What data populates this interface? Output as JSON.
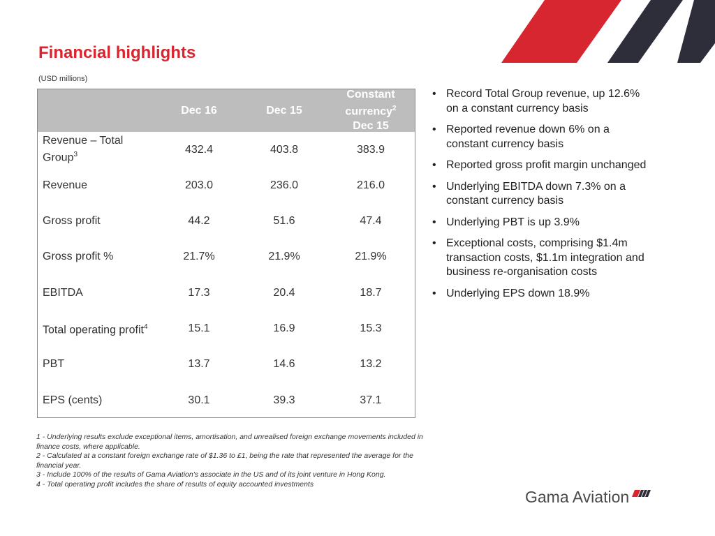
{
  "slide": {
    "title": "Financial highlights",
    "subtitle": "(USD millions)"
  },
  "table": {
    "headers": {
      "col1": "Dec 16",
      "col2": "Dec 15",
      "col3_line1": "Constant",
      "col3_line2": "currency",
      "col3_sup": "2",
      "col3_line3": "Dec 15"
    },
    "rows": [
      {
        "label": "Revenue – Total Group",
        "sup": "3",
        "v1": "432.4",
        "v2": "403.8",
        "v3": "383.9"
      },
      {
        "label": "Revenue",
        "sup": "",
        "v1": "203.0",
        "v2": "236.0",
        "v3": "216.0"
      },
      {
        "label": "Gross profit",
        "sup": "",
        "v1": "44.2",
        "v2": "51.6",
        "v3": "47.4"
      },
      {
        "label": "Gross profit %",
        "sup": "",
        "v1": "21.7%",
        "v2": "21.9%",
        "v3": "21.9%"
      },
      {
        "label": "EBITDA",
        "sup": "",
        "v1": "17.3",
        "v2": "20.4",
        "v3": "18.7"
      },
      {
        "label": "Total operating profit",
        "sup": "4",
        "v1": "15.1",
        "v2": "16.9",
        "v3": "15.3"
      },
      {
        "label": "PBT",
        "sup": "",
        "v1": "13.7",
        "v2": "14.6",
        "v3": "13.2"
      },
      {
        "label": "EPS (cents)",
        "sup": "",
        "v1": "30.1",
        "v2": "39.3",
        "v3": "37.1"
      }
    ],
    "header_bg": "#bdbdbd"
  },
  "bullets": [
    "Record Total Group revenue, up 12.6% on a constant currency basis",
    "Reported revenue down 6% on a constant currency basis",
    "Reported gross profit margin unchanged",
    "Underlying EBITDA down 7.3% on a constant currency basis",
    "Underlying PBT is up 3.9%",
    "Exceptional costs, comprising $1.4m transaction costs, $1.1m integration and business re-organisation costs",
    "Underlying EPS down 18.9%"
  ],
  "bullet_symbol": "•",
  "footnotes": [
    "1 - Underlying results exclude exceptional items, amortisation, and unrealised foreign exchange movements included in finance costs, where applicable.",
    "2 - Calculated at a constant foreign exchange rate of $1.36 to £1, being the rate that represented the average for the financial year.",
    "3 - Include 100% of the results of Gama Aviation's associate in the US and of its joint venture in Hong Kong.",
    "4 - Total operating profit includes the share of results of equity accounted investments"
  ],
  "logo": {
    "text": "Gama Aviation",
    "icon": "gama-stripes-icon"
  },
  "colors": {
    "accent_red": "#d7262f",
    "dark_navy": "#2e2e3a",
    "header_gray": "#bdbdbd"
  }
}
